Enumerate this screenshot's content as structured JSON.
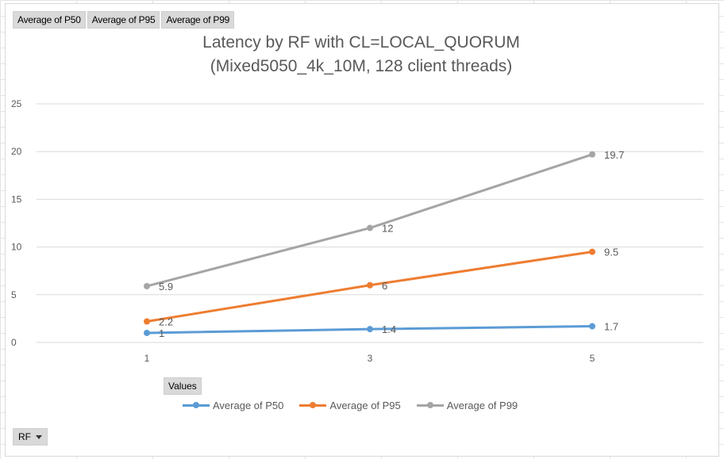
{
  "pivot_fields": [
    "Average of P50",
    "Average of P95",
    "Average of P99"
  ],
  "values_button": "Values",
  "axis_field_button": "RF",
  "colors": {
    "p50": "#5b9bd5",
    "p95": "#ed7d31",
    "p99": "#a5a5a5",
    "grid": "#d9d9d9",
    "text": "#595959"
  },
  "chart_data": {
    "type": "line",
    "title": "Latency by RF with CL=LOCAL_QUORUM",
    "subtitle": "(Mixed5050_4k_10M, 128 client threads)",
    "xlabel": "",
    "ylabel": "",
    "x": [
      "1",
      "3",
      "5"
    ],
    "ylim": [
      0,
      25
    ],
    "yticks": [
      "0",
      "5",
      "10",
      "15",
      "20",
      "25"
    ],
    "grid": true,
    "legend_position": "bottom",
    "series": [
      {
        "name": "Average of P50",
        "values": [
          1,
          1.4,
          1.7
        ],
        "labels": [
          "1",
          "1.4",
          "1.7"
        ],
        "color": "#5b9bd5"
      },
      {
        "name": "Average of P95",
        "values": [
          2.2,
          6,
          9.5
        ],
        "labels": [
          "2.2",
          "6",
          "9.5"
        ],
        "color": "#ed7d31"
      },
      {
        "name": "Average of P99",
        "values": [
          5.9,
          12,
          19.7
        ],
        "labels": [
          "5.9",
          "12",
          "19.7"
        ],
        "color": "#a5a5a5"
      }
    ]
  }
}
